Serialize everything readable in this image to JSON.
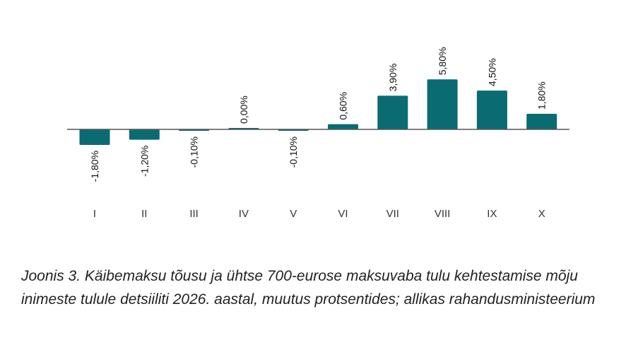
{
  "chart_data": {
    "type": "bar",
    "categories": [
      "I",
      "II",
      "III",
      "IV",
      "V",
      "VI",
      "VII",
      "VIII",
      "IX",
      "X"
    ],
    "values": [
      -1.8,
      -1.2,
      -0.1,
      0.0,
      -0.1,
      0.6,
      3.9,
      5.8,
      4.5,
      1.8
    ],
    "value_labels": [
      "-1,80%",
      "-1,20%",
      "-0,10%",
      "0,00%",
      "-0,10%",
      "0,60%",
      "3,90%",
      "5,80%",
      "4,50%",
      "1,80%"
    ],
    "title": "",
    "xlabel": "",
    "ylabel": "",
    "grid": false,
    "legend": "none",
    "bar_color": "#0a6b73",
    "axis_color": "#555555"
  },
  "caption": "Joonis 3. Käibemaksu tõusu ja ühtse 700-eurose maksuvaba tulu kehtestamise mõju inimeste tulule detsiiliti 2026. aastal, muutus protsentides; allikas rahandusministeerium"
}
